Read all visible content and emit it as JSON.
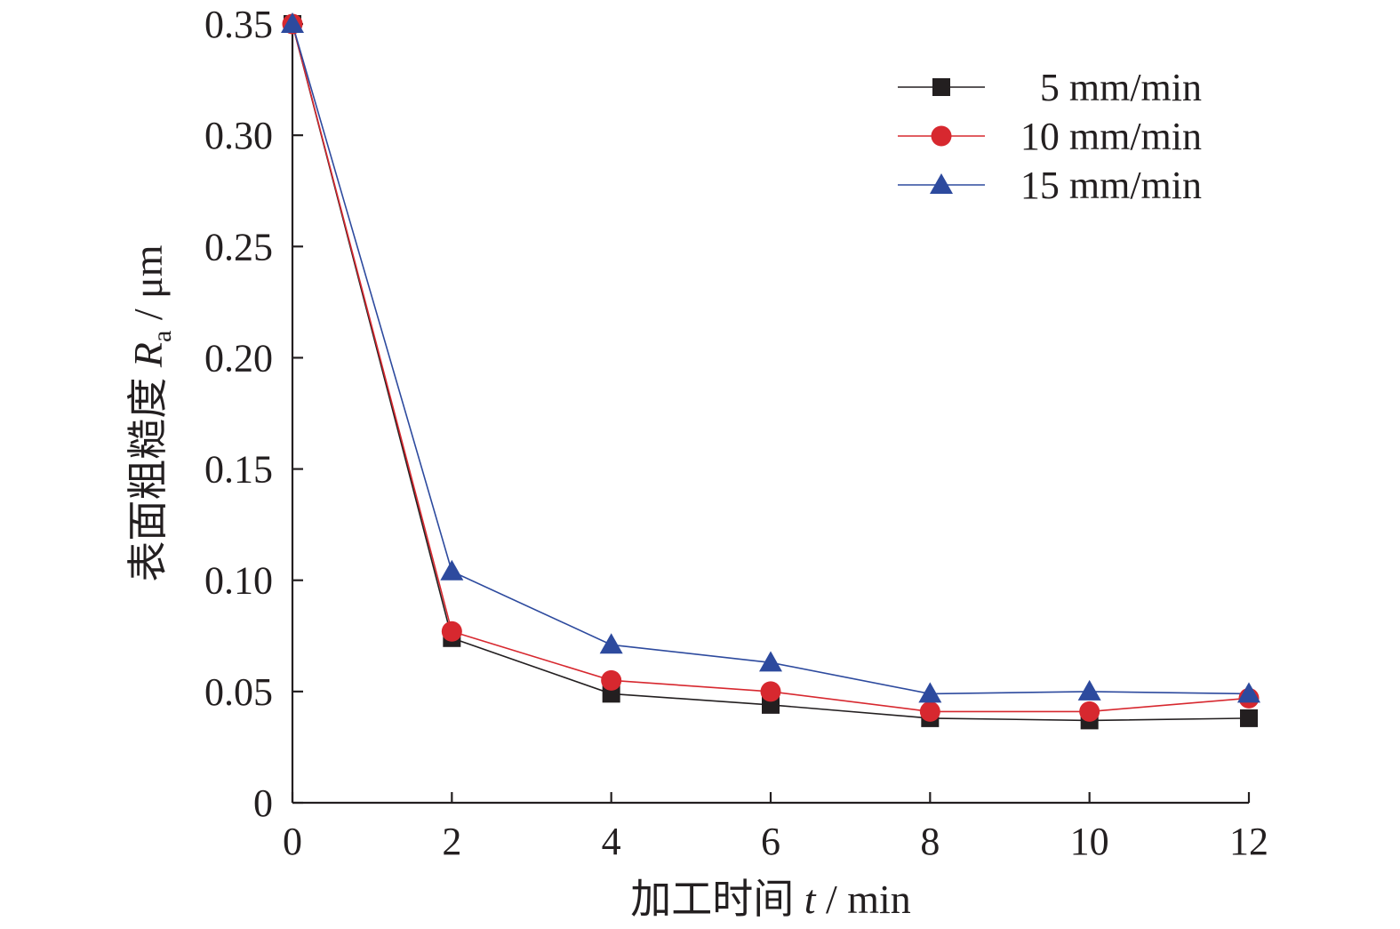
{
  "chart_data": {
    "type": "line",
    "xlabel": {
      "prefix": "加工时间 ",
      "symbol": "t",
      "suffix": " / min"
    },
    "ylabel": {
      "prefix": "表面粗糙度 ",
      "symbol": "R",
      "subscript": "a",
      "suffix": " / μm"
    },
    "xlim": [
      0,
      12
    ],
    "ylim": [
      0,
      0.35
    ],
    "xticks": [
      0,
      2,
      4,
      6,
      8,
      10,
      12
    ],
    "xtick_labels": [
      "0",
      "2",
      "4",
      "6",
      "8",
      "10",
      "12"
    ],
    "yticks": [
      0,
      0.05,
      0.1,
      0.15,
      0.2,
      0.25,
      0.3,
      0.35
    ],
    "ytick_labels": [
      "0",
      "0.05",
      "0.10",
      "0.15",
      "0.20",
      "0.25",
      "0.30",
      "0.35"
    ],
    "grid": false,
    "legend_position": "top-right",
    "x": [
      0,
      2,
      4,
      6,
      8,
      10,
      12
    ],
    "series": [
      {
        "name": "5 mm/min",
        "marker": "square",
        "color": "#231f20",
        "values": [
          0.35,
          0.074,
          0.049,
          0.044,
          0.038,
          0.037,
          0.038
        ]
      },
      {
        "name": "10 mm/min",
        "marker": "circle",
        "color": "#d7282f",
        "values": [
          0.35,
          0.077,
          0.055,
          0.05,
          0.041,
          0.041,
          0.047
        ]
      },
      {
        "name": "15 mm/min",
        "marker": "triangle",
        "color": "#2d4a9e",
        "values": [
          0.35,
          0.104,
          0.071,
          0.063,
          0.049,
          0.05,
          0.049
        ]
      }
    ]
  }
}
